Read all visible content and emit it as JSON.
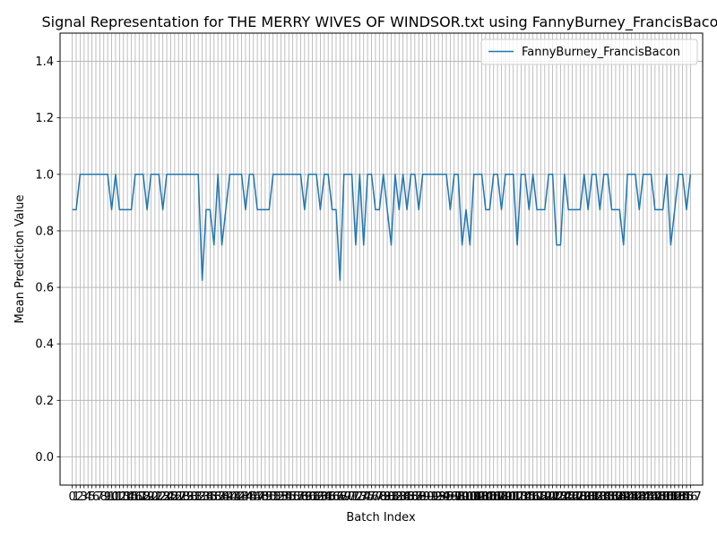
{
  "chart_data": {
    "type": "line",
    "title": "Signal Representation for THE MERRY WIVES OF WINDSOR.txt using FannyBurney_FrancisBacon",
    "xlabel": "Batch Index",
    "ylabel": "Mean Prediction Value",
    "ylim": [
      -0.1,
      1.5
    ],
    "xlim": [
      -3.1,
      160.1
    ],
    "yticks": [
      "0.0",
      "0.2",
      "0.4",
      "0.6",
      "0.8",
      "1.0",
      "1.2",
      "1.4"
    ],
    "grid": true,
    "legend": "top-right",
    "series": [
      {
        "name": "FannyBurney_FrancisBacon",
        "color": "#1f77b4",
        "x": [
          0,
          1,
          2,
          3,
          4,
          5,
          6,
          7,
          8,
          9,
          10,
          11,
          12,
          13,
          14,
          15,
          16,
          17,
          18,
          19,
          20,
          21,
          22,
          23,
          24,
          25,
          26,
          27,
          28,
          29,
          30,
          31,
          32,
          33,
          34,
          35,
          36,
          37,
          38,
          39,
          40,
          41,
          42,
          43,
          44,
          45,
          46,
          47,
          48,
          49,
          50,
          51,
          52,
          53,
          54,
          55,
          56,
          57,
          58,
          59,
          60,
          61,
          62,
          63,
          64,
          65,
          66,
          67,
          68,
          69,
          70,
          71,
          72,
          73,
          74,
          75,
          76,
          77,
          78,
          79,
          80,
          81,
          82,
          83,
          84,
          85,
          86,
          87,
          88,
          89,
          90,
          91,
          92,
          93,
          94,
          95,
          96,
          97,
          98,
          99,
          100,
          101,
          102,
          103,
          104,
          105,
          106,
          107,
          108,
          109,
          110,
          111,
          112,
          113,
          114,
          115,
          116,
          117,
          118,
          119,
          120,
          121,
          122,
          123,
          124,
          125,
          126,
          127,
          128,
          129,
          130,
          131,
          132,
          133,
          134,
          135,
          136,
          137,
          138,
          139,
          140,
          141,
          142,
          143,
          144,
          145,
          146,
          147,
          148,
          149,
          150,
          151,
          152,
          153,
          154,
          155,
          156,
          157
        ],
        "values": [
          0.875,
          0.875,
          1.0,
          1.0,
          1.0,
          1.0,
          1.0,
          1.0,
          1.0,
          1.0,
          0.875,
          1.0,
          0.875,
          0.875,
          0.875,
          0.875,
          1.0,
          1.0,
          1.0,
          0.875,
          1.0,
          1.0,
          1.0,
          0.875,
          1.0,
          1.0,
          1.0,
          1.0,
          1.0,
          1.0,
          1.0,
          1.0,
          1.0,
          0.625,
          0.875,
          0.875,
          0.75,
          1.0,
          0.75,
          0.875,
          1.0,
          1.0,
          1.0,
          1.0,
          0.875,
          1.0,
          1.0,
          0.875,
          0.875,
          0.875,
          0.875,
          1.0,
          1.0,
          1.0,
          1.0,
          1.0,
          1.0,
          1.0,
          1.0,
          0.875,
          1.0,
          1.0,
          1.0,
          0.875,
          1.0,
          1.0,
          0.875,
          0.875,
          0.625,
          1.0,
          1.0,
          1.0,
          0.75,
          1.0,
          0.75,
          1.0,
          1.0,
          0.875,
          0.875,
          1.0,
          0.875,
          0.75,
          1.0,
          0.875,
          1.0,
          0.875,
          1.0,
          1.0,
          0.875,
          1.0,
          1.0,
          1.0,
          1.0,
          1.0,
          1.0,
          1.0,
          0.875,
          1.0,
          1.0,
          0.75,
          0.875,
          0.75,
          1.0,
          1.0,
          1.0,
          0.875,
          0.875,
          1.0,
          1.0,
          0.875,
          1.0,
          1.0,
          1.0,
          0.75,
          1.0,
          1.0,
          0.875,
          1.0,
          0.875,
          0.875,
          0.875,
          1.0,
          1.0,
          0.75,
          0.75,
          1.0,
          0.875,
          0.875,
          0.875,
          0.875,
          1.0,
          0.875,
          1.0,
          1.0,
          0.875,
          1.0,
          1.0,
          0.875,
          0.875,
          0.875,
          0.75,
          1.0,
          1.0,
          1.0,
          0.875,
          1.0,
          1.0,
          1.0,
          0.875,
          0.875,
          0.875,
          1.0,
          0.75,
          0.875,
          1.0,
          1.0,
          0.875,
          1.0
        ]
      }
    ]
  }
}
